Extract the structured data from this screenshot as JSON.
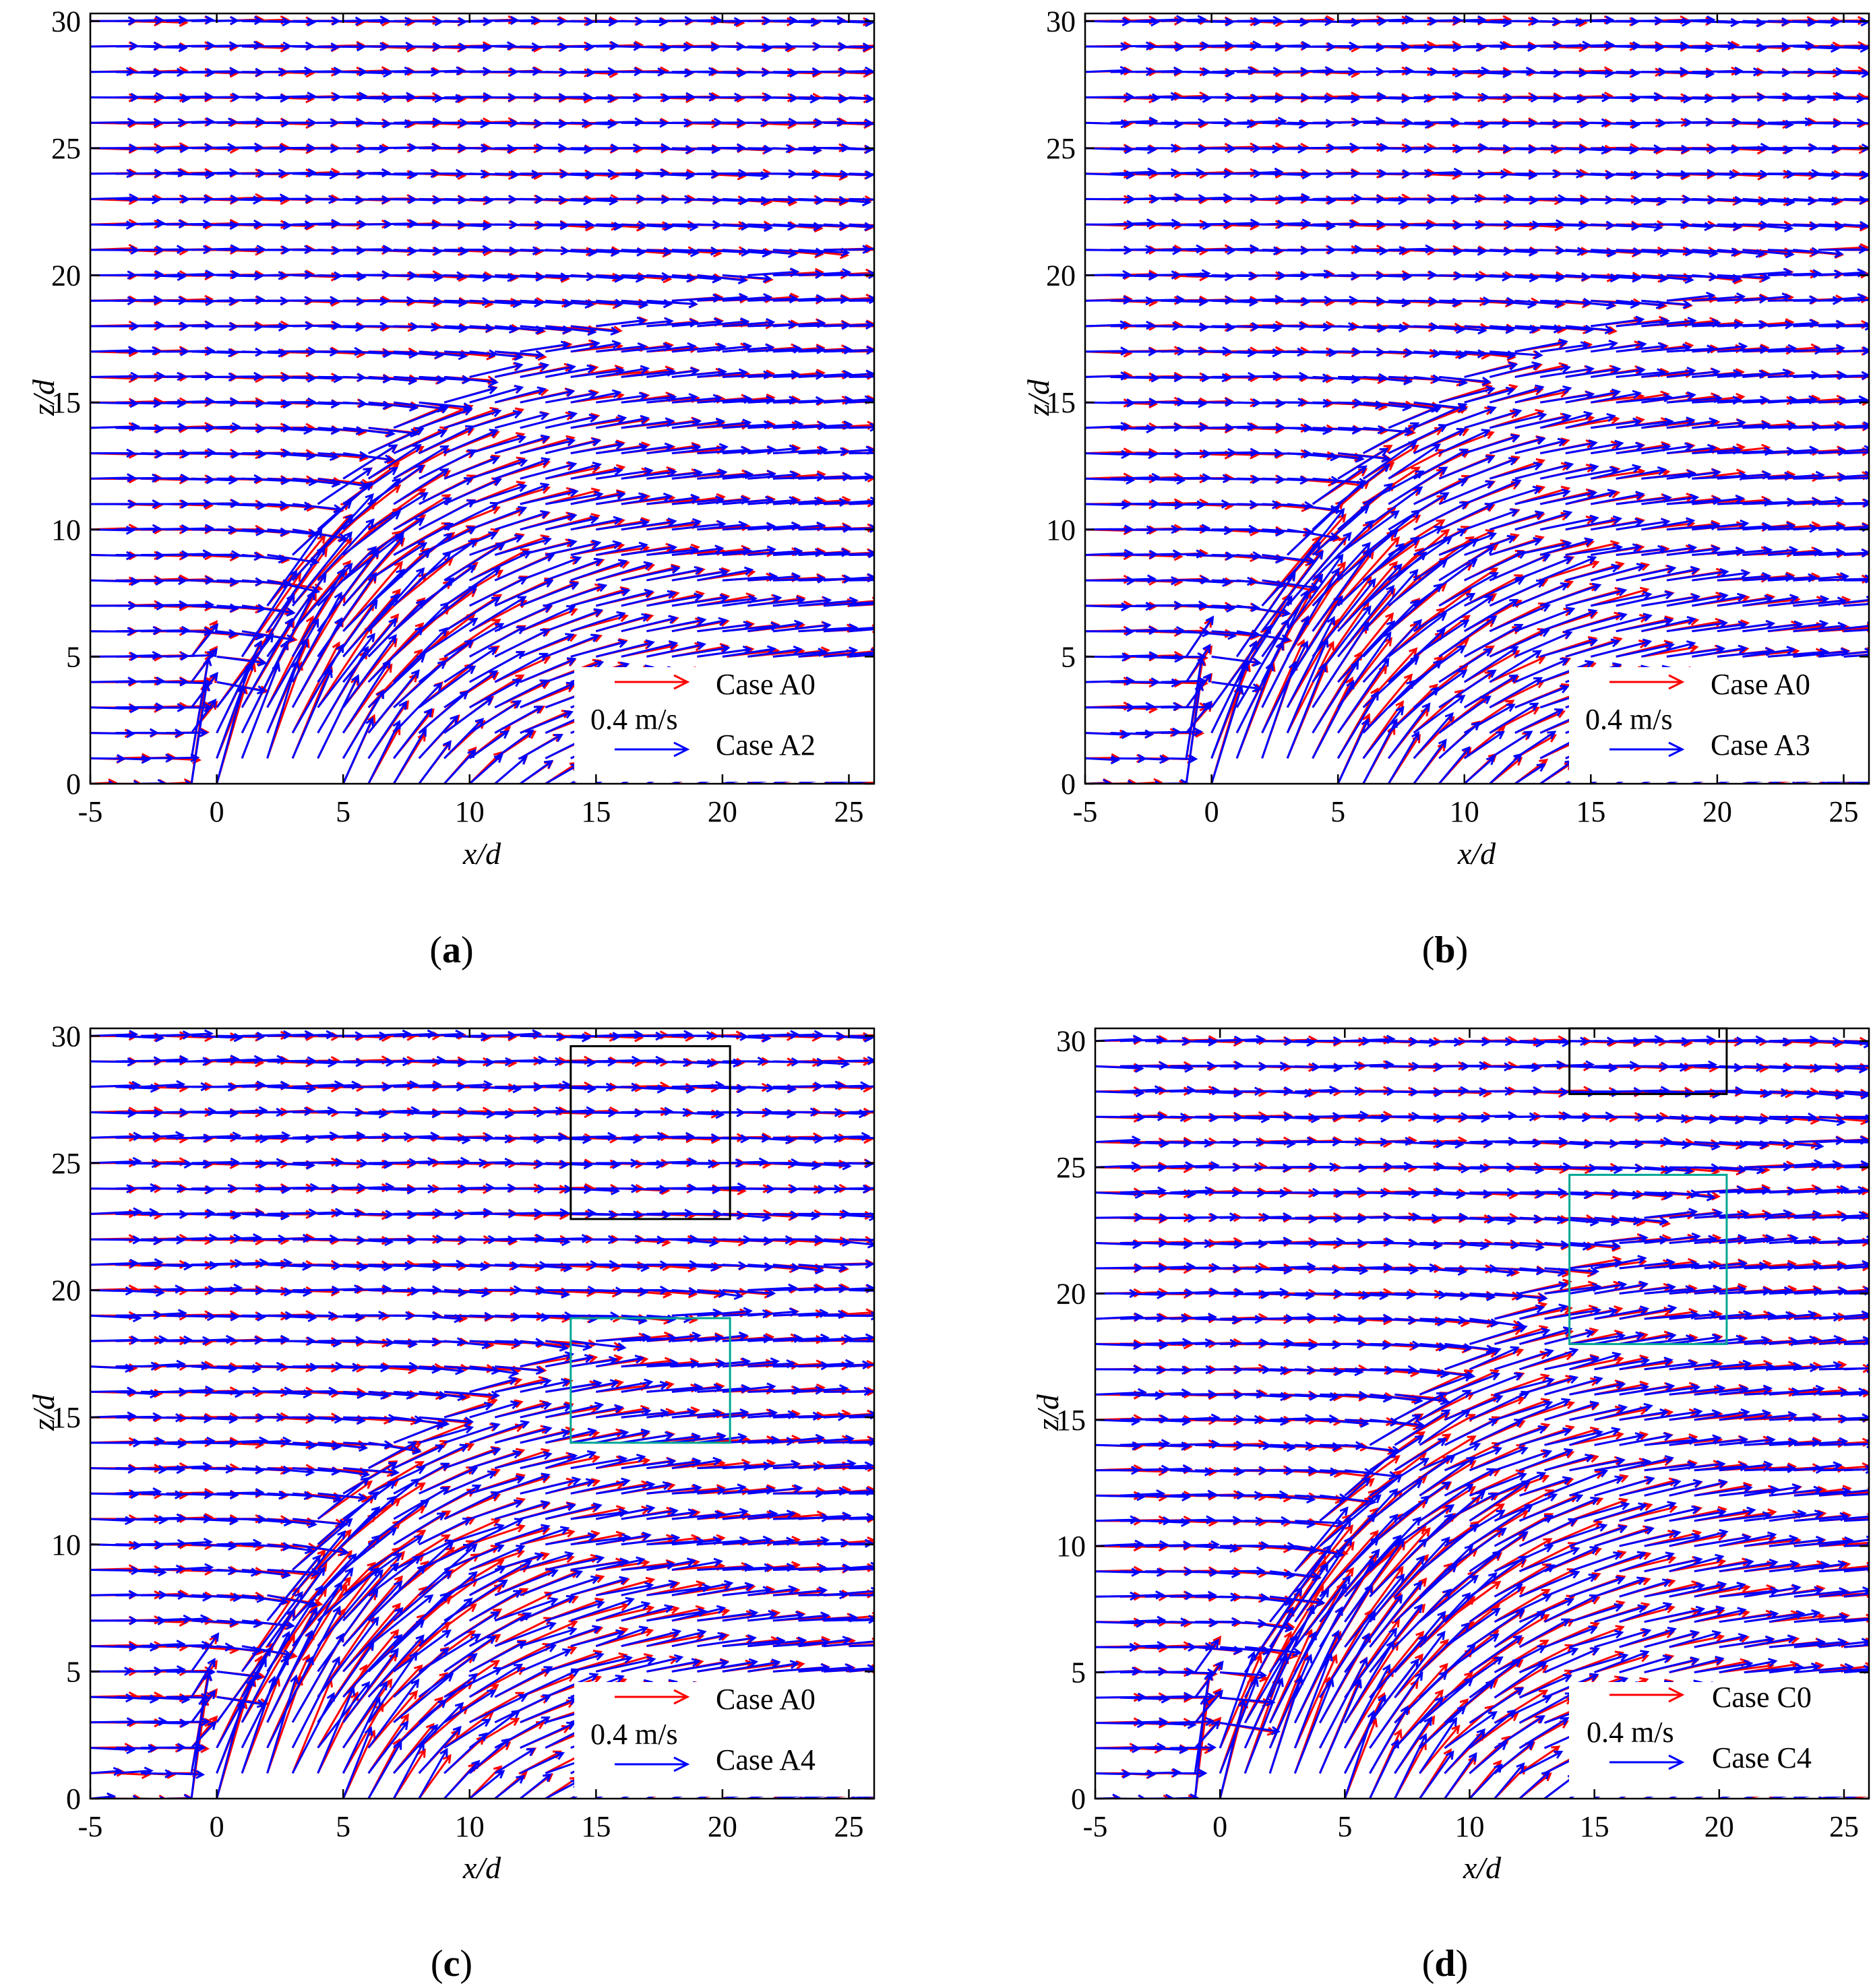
{
  "figure": {
    "colors": {
      "reference": "#ff0000",
      "comparison": "#0000ff",
      "axis": "#000000",
      "box_outer": "#000000",
      "box_inner": "#00a693"
    },
    "chart_data": [
      {
        "id": "a",
        "type": "quiver",
        "panel_label": "a",
        "xlabel": "x/d",
        "ylabel": "z/d",
        "xlim": [
          -5,
          26
        ],
        "ylim": [
          0,
          30.3
        ],
        "xticks": [
          -5,
          0,
          5,
          10,
          15,
          20,
          25
        ],
        "yticks": [
          0,
          5,
          10,
          15,
          20,
          25,
          30
        ],
        "legend": {
          "position": "bottom-right",
          "scale_label": "0.4 m/s",
          "scale_speed": 0.4,
          "entries": [
            {
              "name": "Case A0",
              "color": "#ff0000"
            },
            {
              "name": "Case A2",
              "color": "#0000ff"
            }
          ]
        },
        "flow": {
          "jet_x": 0,
          "jet_height": 12,
          "bend": 0.16,
          "jet_speed": 1.2,
          "crossflow_speed": 0.4
        },
        "comparison_deviation": 0.1,
        "boxes": []
      },
      {
        "id": "b",
        "type": "quiver",
        "panel_label": "b",
        "xlabel": "x/d",
        "ylabel": "z/d",
        "xlim": [
          -5,
          26
        ],
        "ylim": [
          0,
          30.3
        ],
        "xticks": [
          -5,
          0,
          5,
          10,
          15,
          20,
          25
        ],
        "yticks": [
          0,
          5,
          10,
          15,
          20,
          25,
          30
        ],
        "legend": {
          "position": "bottom-right",
          "scale_label": "0.4 m/s",
          "scale_speed": 0.4,
          "entries": [
            {
              "name": "Case A0",
              "color": "#ff0000"
            },
            {
              "name": "Case A3",
              "color": "#0000ff"
            }
          ]
        },
        "flow": {
          "jet_x": 0,
          "jet_height": 12,
          "bend": 0.16,
          "jet_speed": 1.2,
          "crossflow_speed": 0.4
        },
        "comparison_deviation": 0.13,
        "boxes": []
      },
      {
        "id": "c",
        "type": "quiver",
        "panel_label": "c",
        "xlabel": "x/d",
        "ylabel": "z/d",
        "xlim": [
          -5,
          26
        ],
        "ylim": [
          0,
          30.3
        ],
        "xticks": [
          -5,
          0,
          5,
          10,
          15,
          20,
          25
        ],
        "yticks": [
          0,
          5,
          10,
          15,
          20,
          25,
          30
        ],
        "legend": {
          "position": "bottom-right",
          "scale_label": "0.4 m/s",
          "scale_speed": 0.4,
          "entries": [
            {
              "name": "Case A0",
              "color": "#ff0000"
            },
            {
              "name": "Case A4",
              "color": "#0000ff"
            }
          ]
        },
        "flow": {
          "jet_x": 0,
          "jet_height": 12,
          "bend": 0.16,
          "jet_speed": 1.2,
          "crossflow_speed": 0.4
        },
        "comparison_deviation": 0.18,
        "boxes": [
          {
            "name": "upper-region-box",
            "color": "#000000",
            "x": [
              14,
              20.3
            ],
            "z": [
              22.8,
              29.6
            ]
          },
          {
            "name": "wake-region-box",
            "color": "#00a693",
            "x": [
              14,
              20.3
            ],
            "z": [
              14,
              18.9
            ]
          }
        ]
      },
      {
        "id": "d",
        "type": "quiver",
        "panel_label": "d",
        "xlabel": "x/d",
        "ylabel": "z/d",
        "xlim": [
          -5,
          26
        ],
        "ylim": [
          0,
          30.5
        ],
        "xticks": [
          -5,
          0,
          5,
          10,
          15,
          20,
          25
        ],
        "yticks": [
          0,
          5,
          10,
          15,
          20,
          25,
          30
        ],
        "legend": {
          "position": "bottom-right",
          "scale_label": "0.4 m/s",
          "scale_speed": 0.4,
          "entries": [
            {
              "name": "Case C0",
              "color": "#ff0000"
            },
            {
              "name": "Case C4",
              "color": "#0000ff"
            }
          ]
        },
        "flow": {
          "jet_x": 0,
          "jet_height": 18,
          "bend": 0.085,
          "jet_speed": 1.4,
          "crossflow_speed": 0.4
        },
        "comparison_deviation": 0.16,
        "boxes": [
          {
            "name": "upper-region-box",
            "color": "#000000",
            "x": [
              14,
              20.3
            ],
            "z": [
              27.9,
              30.5
            ]
          },
          {
            "name": "wake-region-box",
            "color": "#00a693",
            "x": [
              14,
              20.3
            ],
            "z": [
              18,
              24.7
            ]
          }
        ]
      }
    ]
  }
}
